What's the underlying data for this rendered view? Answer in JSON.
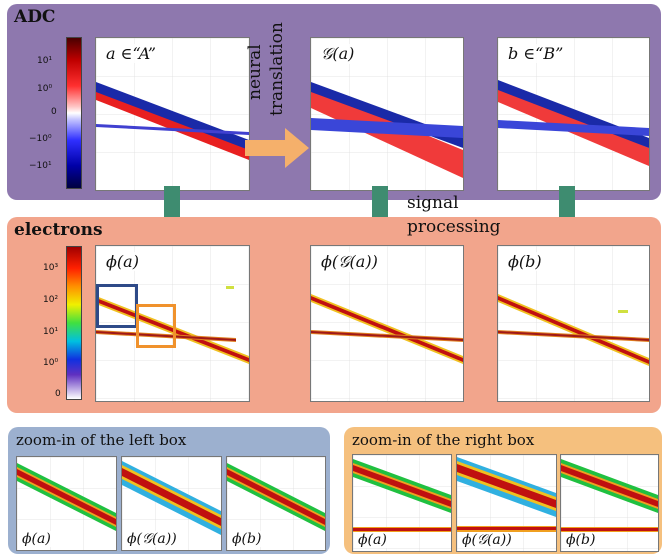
{
  "colors": {
    "adc_panel": "#8e78ae",
    "electrons_panel": "#f2a58c",
    "left_zoom_panel": "#9cb0cf",
    "right_zoom_panel": "#f5c07e",
    "down_arrow": "#3e8c70",
    "translation_arrow": "#f5b06b",
    "left_box": "#2e4a88",
    "right_box": "#f0922c"
  },
  "adc": {
    "title": "ADC",
    "colorbar_ticks": [
      "10¹",
      "10⁰",
      "0",
      "−10⁰",
      "−10¹"
    ],
    "plots": [
      {
        "label": "a ∈“A”"
      },
      {
        "label": "𝒢(a)"
      },
      {
        "label": "b ∈“B”"
      }
    ],
    "translation_line1": "neural",
    "translation_line2": "translation"
  },
  "signal_processing": {
    "line1": "signal",
    "line2": "processing"
  },
  "electrons": {
    "title": "electrons",
    "colorbar_ticks": [
      "10³",
      "10²",
      "10¹",
      "10⁰",
      "0"
    ],
    "plots": [
      {
        "label": "ϕ(a)"
      },
      {
        "label": "ϕ(𝒢(a))"
      },
      {
        "label": "ϕ(b)"
      }
    ]
  },
  "zoom_left": {
    "title": "zoom-in of the left box",
    "plots": [
      {
        "label": "ϕ(a)"
      },
      {
        "label": "ϕ(𝒢(a))"
      },
      {
        "label": "ϕ(b)"
      }
    ]
  },
  "zoom_right": {
    "title": "zoom-in of the right box",
    "plots": [
      {
        "label": "ϕ(a)"
      },
      {
        "label": "ϕ(𝒢(a))"
      },
      {
        "label": "ϕ(b)"
      }
    ]
  }
}
